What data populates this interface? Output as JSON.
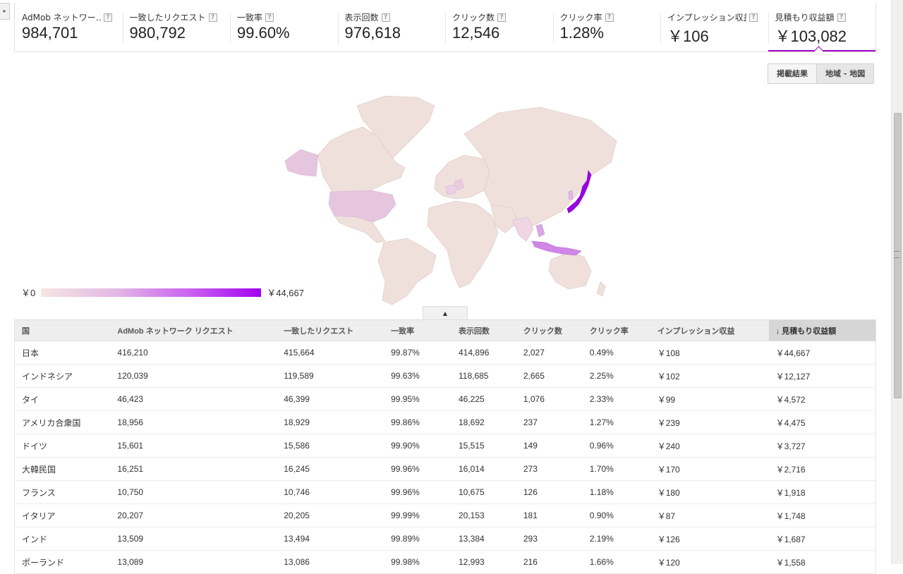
{
  "metrics": [
    {
      "label": "AdMob ネットワー…",
      "value": "984,701"
    },
    {
      "label": "一致したリクエスト",
      "value": "980,792"
    },
    {
      "label": "一致率",
      "value": "99.60%"
    },
    {
      "label": "表示回数",
      "value": "976,618"
    },
    {
      "label": "クリック数",
      "value": "12,546"
    },
    {
      "label": "クリック率",
      "value": "1.28%"
    },
    {
      "label": "インプレッション収益",
      "value": "￥106"
    },
    {
      "label": "見積もり収益額",
      "value": "￥103,082"
    }
  ],
  "help_glyph": "?",
  "view_toggle": {
    "results": "掲載結果",
    "map": "地域 - 地図"
  },
  "legend": {
    "min": "￥0",
    "max": "￥44,667"
  },
  "collapse_arrow": "▲",
  "table": {
    "headers": [
      "国",
      "AdMob ネットワーク リクエスト",
      "一致したリクエスト",
      "一致率",
      "表示回数",
      "クリック数",
      "クリック率",
      "インプレッション収益",
      "↓ 見積もり収益額"
    ],
    "rows": [
      [
        "日本",
        "416,210",
        "415,664",
        "99.87%",
        "414,896",
        "2,027",
        "0.49%",
        "￥108",
        "￥44,667"
      ],
      [
        "インドネシア",
        "120,039",
        "119,589",
        "99.63%",
        "118,685",
        "2,665",
        "2.25%",
        "￥102",
        "￥12,127"
      ],
      [
        "タイ",
        "46,423",
        "46,399",
        "99.95%",
        "46,225",
        "1,076",
        "2.33%",
        "￥99",
        "￥4,572"
      ],
      [
        "アメリカ合衆国",
        "18,956",
        "18,929",
        "99.86%",
        "18,692",
        "237",
        "1.27%",
        "￥239",
        "￥4,475"
      ],
      [
        "ドイツ",
        "15,601",
        "15,586",
        "99.90%",
        "15,515",
        "149",
        "0.96%",
        "￥240",
        "￥3,727"
      ],
      [
        "大韓民国",
        "16,251",
        "16,245",
        "99.96%",
        "16,014",
        "273",
        "1.70%",
        "￥170",
        "￥2,716"
      ],
      [
        "フランス",
        "10,750",
        "10,746",
        "99.96%",
        "10,675",
        "126",
        "1.18%",
        "￥180",
        "￥1,918"
      ],
      [
        "イタリア",
        "20,207",
        "20,205",
        "99.99%",
        "20,153",
        "181",
        "0.90%",
        "￥87",
        "￥1,748"
      ],
      [
        "インド",
        "13,509",
        "13,494",
        "99.89%",
        "13,384",
        "293",
        "2.19%",
        "￥126",
        "￥1,687"
      ],
      [
        "ポーランド",
        "13,089",
        "13,086",
        "99.98%",
        "12,993",
        "216",
        "1.66%",
        "￥120",
        "￥1,558"
      ]
    ]
  },
  "colors": {
    "accent": "#a000c8",
    "map_base": "#efe0dc",
    "map_high": "#9b00e6"
  }
}
